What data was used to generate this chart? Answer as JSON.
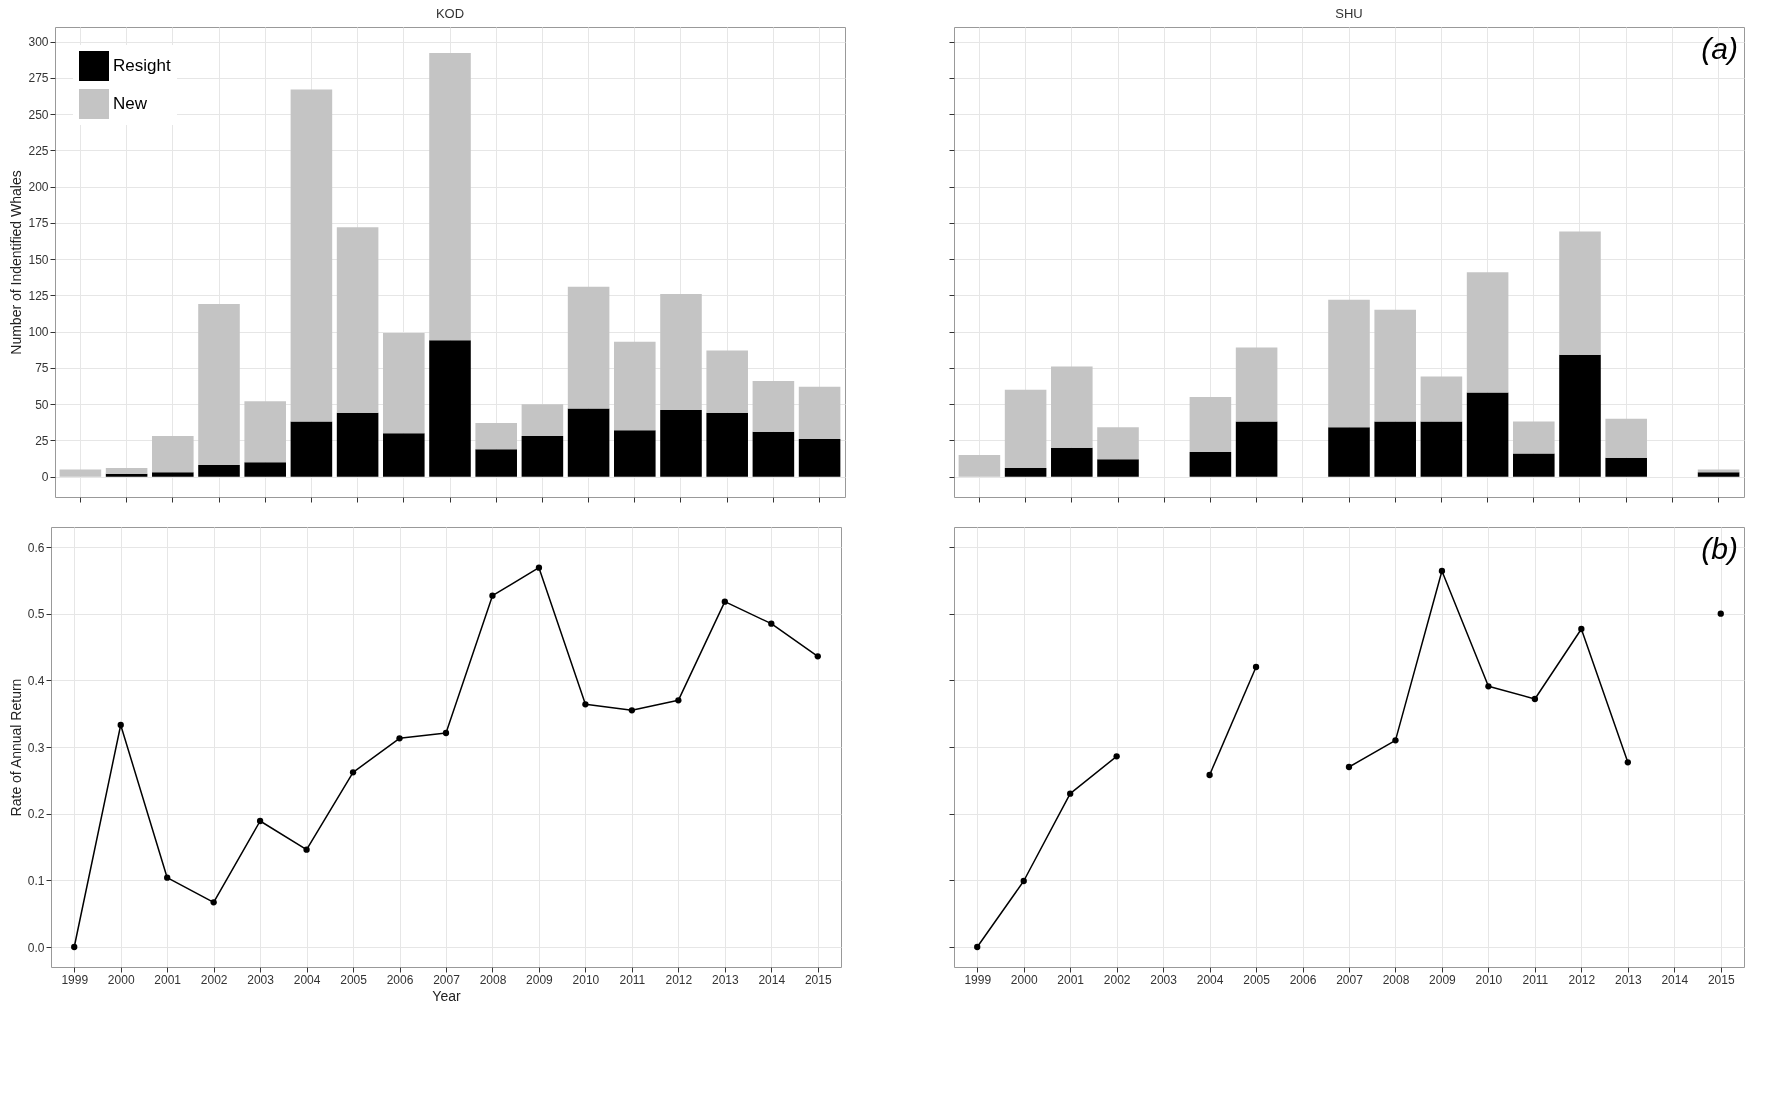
{
  "chart_data": [
    {
      "type": "bar",
      "title": "KOD",
      "ylabel": "Number of Indentified Whales",
      "stacked": true,
      "legend": "top left",
      "grid": true,
      "tick_labels": "y",
      "categories": [
        "1999",
        "2000",
        "2001",
        "2002",
        "2003",
        "2004",
        "2005",
        "2006",
        "2007",
        "2008",
        "2009",
        "2010",
        "2011",
        "2012",
        "2013",
        "2014",
        "2015"
      ],
      "ylim": [
        -14,
        310
      ],
      "yticks": [
        0,
        25,
        50,
        75,
        100,
        125,
        150,
        175,
        200,
        225,
        250,
        275,
        300
      ],
      "series": [
        {
          "name": "Resight",
          "color": "#000000",
          "values": [
            0,
            2,
            3,
            8,
            10,
            38,
            44,
            30,
            94,
            19,
            28,
            47,
            32,
            46,
            44,
            31,
            26
          ]
        },
        {
          "name": "New",
          "color": "#c4c4c4",
          "values": [
            5,
            4,
            25,
            111,
            42,
            229,
            128,
            69,
            198,
            18,
            22,
            84,
            61,
            80,
            43,
            35,
            36
          ]
        }
      ]
    },
    {
      "type": "bar",
      "title": "SHU",
      "stacked": true,
      "grid": true,
      "tick_labels": false,
      "annotations": [
        "(a)"
      ],
      "categories": [
        "1999",
        "2000",
        "2001",
        "2002",
        "2003",
        "2004",
        "2005",
        "2006",
        "2007",
        "2008",
        "2009",
        "2010",
        "2011",
        "2012",
        "2013",
        "2014",
        "2015"
      ],
      "ylim": [
        -14,
        310
      ],
      "yticks": [
        0,
        25,
        50,
        75,
        100,
        125,
        150,
        175,
        200,
        225,
        250,
        275,
        300
      ],
      "series": [
        {
          "color": "#000000",
          "values": [
            0,
            6,
            20,
            12,
            null,
            17,
            38,
            null,
            34,
            38,
            38,
            58,
            16,
            84,
            13,
            null,
            3
          ]
        },
        {
          "color": "#c4c4c4",
          "values": [
            15,
            54,
            56,
            22,
            null,
            38,
            51,
            null,
            88,
            77,
            31,
            83,
            22,
            85,
            27,
            null,
            2
          ]
        }
      ]
    },
    {
      "type": "line",
      "ylabel": "Rate of Annual Return",
      "xlabel": "Year",
      "grid": true,
      "marker": "circle",
      "line_style": "solid",
      "categories": [
        "1999",
        "2000",
        "2001",
        "2002",
        "2003",
        "2004",
        "2005",
        "2006",
        "2007",
        "2008",
        "2009",
        "2010",
        "2011",
        "2012",
        "2013",
        "2014",
        "2015"
      ],
      "ylim": [
        -0.03,
        0.63
      ],
      "yticks": [
        {
          "value": 0,
          "label": "0.0"
        },
        0.1,
        0.2,
        0.3,
        0.4,
        0.5,
        0.6
      ],
      "series": [
        {
          "color": "#000000",
          "values": [
            0,
            0.333,
            0.104,
            0.067,
            0.189,
            0.146,
            0.262,
            0.313,
            0.321,
            0.527,
            0.569,
            0.364,
            0.355,
            0.37,
            0.518,
            0.485,
            0.436
          ]
        }
      ]
    },
    {
      "type": "line",
      "grid": true,
      "marker": "circle",
      "line_style": "solid",
      "tick_labels": "x",
      "annotations": [
        "(b)"
      ],
      "categories": [
        "1999",
        "2000",
        "2001",
        "2002",
        "2003",
        "2004",
        "2005",
        "2006",
        "2007",
        "2008",
        "2009",
        "2010",
        "2011",
        "2012",
        "2013",
        "2014",
        "2015"
      ],
      "ylim": [
        -0.03,
        0.63
      ],
      "yticks": [
        0,
        0.1,
        0.2,
        0.3,
        0.4,
        0.5,
        0.6
      ],
      "series": [
        {
          "color": "#000000",
          "values": [
            0,
            0.099,
            0.23,
            0.286,
            null,
            0.258,
            0.42,
            null,
            0.27,
            0.31,
            0.564,
            0.391,
            0.372,
            0.477,
            0.277,
            null,
            0.5
          ]
        }
      ]
    }
  ]
}
